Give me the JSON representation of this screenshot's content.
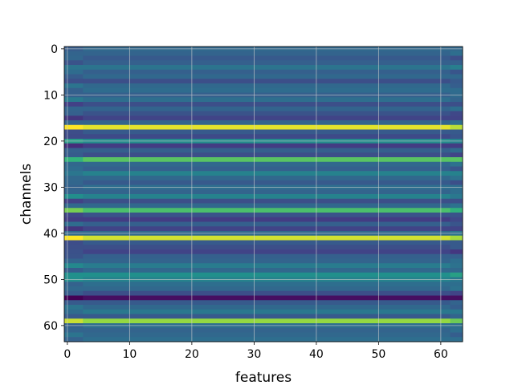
{
  "chart_data": {
    "type": "heatmap",
    "title": "",
    "xlabel": "features",
    "ylabel": "channels",
    "colormap": "viridis",
    "xlim": [
      -0.5,
      63.5
    ],
    "ylim": [
      63.5,
      -0.5
    ],
    "x_ticks": [
      0,
      10,
      20,
      30,
      40,
      50,
      60
    ],
    "x_tick_labels": [
      "0",
      "10",
      "20",
      "30",
      "40",
      "50",
      "60"
    ],
    "y_ticks": [
      0,
      10,
      20,
      30,
      40,
      50,
      60
    ],
    "y_tick_labels": [
      "0",
      "10",
      "20",
      "30",
      "40",
      "50",
      "60"
    ],
    "grid": true,
    "n_features": 64,
    "n_channels": 64,
    "row_values": [
      0.42,
      0.4,
      0.35,
      0.38,
      0.48,
      0.38,
      0.42,
      0.3,
      0.42,
      0.44,
      0.38,
      0.45,
      0.3,
      0.4,
      0.32,
      0.25,
      0.4,
      0.97,
      0.35,
      0.28,
      0.6,
      0.22,
      0.38,
      0.3,
      0.8,
      0.42,
      0.38,
      0.55,
      0.42,
      0.35,
      0.45,
      0.4,
      0.55,
      0.3,
      0.42,
      0.78,
      0.32,
      0.22,
      0.38,
      0.25,
      0.42,
      0.95,
      0.35,
      0.3,
      0.25,
      0.38,
      0.4,
      0.52,
      0.42,
      0.62,
      0.55,
      0.45,
      0.42,
      0.3,
      0.05,
      0.35,
      0.42,
      0.5,
      0.35,
      0.88,
      0.45,
      0.4,
      0.42,
      0.45
    ],
    "edge_variation": "first ~3 features and last ~2 features differ slightly from the rest of each row"
  }
}
